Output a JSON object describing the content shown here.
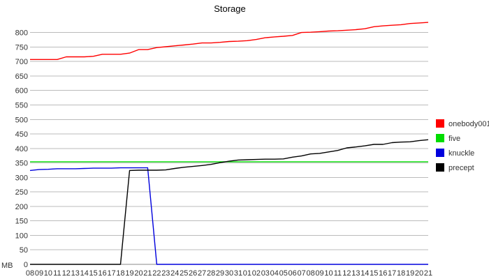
{
  "chart_data": {
    "type": "line",
    "title": "Storage",
    "ylabel": "MB",
    "xlabel": "",
    "ylim": [
      0,
      840
    ],
    "yticks": [
      0,
      50,
      100,
      150,
      200,
      250,
      300,
      350,
      400,
      450,
      500,
      550,
      600,
      650,
      700,
      750,
      800
    ],
    "grid": true,
    "legend_position": "right",
    "categories": [
      "08",
      "09",
      "10",
      "11",
      "12",
      "13",
      "14",
      "15",
      "16",
      "17",
      "18",
      "19",
      "20",
      "21",
      "22",
      "23",
      "24",
      "25",
      "26",
      "27",
      "28",
      "29",
      "30",
      "31",
      "01",
      "02",
      "03",
      "04",
      "05",
      "06",
      "07",
      "08",
      "09",
      "10",
      "11",
      "12",
      "13",
      "14",
      "15",
      "16",
      "17",
      "18",
      "19",
      "20",
      "21"
    ],
    "series": [
      {
        "name": "onebody001",
        "color": "#ff0000",
        "values": [
          707,
          707,
          707,
          707,
          716,
          716,
          716,
          718,
          725,
          725,
          725,
          729,
          741,
          741,
          748,
          751,
          754,
          757,
          760,
          764,
          764,
          766,
          769,
          770,
          772,
          776,
          782,
          785,
          787,
          790,
          800,
          801,
          803,
          805,
          806,
          808,
          810,
          813,
          820,
          823,
          825,
          827,
          831,
          833,
          835
        ]
      },
      {
        "name": "five",
        "color": "#00dd00",
        "values": [
          354,
          354,
          354,
          354,
          354,
          354,
          354,
          354,
          354,
          354,
          354,
          354,
          354,
          354,
          354,
          354,
          354,
          354,
          354,
          354,
          354,
          354,
          354,
          354,
          354,
          354,
          354,
          354,
          354,
          354,
          354,
          354,
          354,
          354,
          354,
          354,
          354,
          354,
          354,
          354,
          354,
          354,
          354,
          354,
          354
        ]
      },
      {
        "name": "knuckle",
        "color": "#0000dd",
        "values": [
          324,
          327,
          328,
          330,
          330,
          330,
          331,
          332,
          332,
          332,
          333,
          333,
          333,
          333,
          0,
          0,
          0,
          0,
          0,
          0,
          0,
          0,
          0,
          0,
          0,
          0,
          0,
          0,
          0,
          0,
          0,
          0,
          0,
          0,
          0,
          0,
          0,
          0,
          0,
          0,
          0,
          0,
          0,
          0,
          0
        ]
      },
      {
        "name": "precept",
        "color": "#000000",
        "values": [
          0,
          0,
          0,
          0,
          0,
          0,
          0,
          0,
          0,
          0,
          0,
          324,
          325,
          325,
          325,
          326,
          331,
          335,
          338,
          341,
          345,
          351,
          356,
          360,
          361,
          362,
          363,
          363,
          364,
          370,
          374,
          381,
          383,
          388,
          393,
          402,
          405,
          409,
          414,
          414,
          420,
          422,
          423,
          427,
          430
        ]
      }
    ]
  }
}
